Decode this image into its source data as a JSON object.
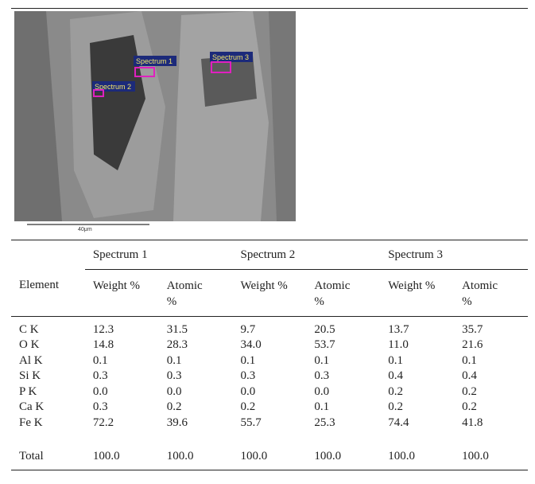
{
  "figure": {
    "labels": [
      "Spectrum 1",
      "Spectrum 2",
      "Spectrum 3"
    ],
    "scale_bar": "40μm"
  },
  "table": {
    "groups": [
      "Spectrum 1",
      "Spectrum 2",
      "Spectrum 3"
    ],
    "element_header": "Element",
    "subheaders": [
      "Weight %",
      "Atomic %",
      "Weight %",
      "Atomic %",
      "Weight %",
      "Atomic %"
    ],
    "rows": [
      [
        "C K",
        "12.3",
        "31.5",
        "9.7",
        "20.5",
        "13.7",
        "35.7"
      ],
      [
        "O K",
        "14.8",
        "28.3",
        "34.0",
        "53.7",
        "11.0",
        "21.6"
      ],
      [
        "Al K",
        "0.1",
        "0.1",
        "0.1",
        "0.1",
        "0.1",
        "0.1"
      ],
      [
        "Si K",
        "0.3",
        "0.3",
        "0.3",
        "0.3",
        "0.4",
        "0.4"
      ],
      [
        "P K",
        "0.0",
        "0.0",
        "0.0",
        "0.0",
        "0.2",
        "0.2"
      ],
      [
        "Ca K",
        "0.3",
        "0.2",
        "0.2",
        "0.1",
        "0.2",
        "0.2"
      ],
      [
        "Fe K",
        "72.2",
        "39.6",
        "55.7",
        "25.3",
        "74.4",
        "41.8"
      ]
    ],
    "total": [
      "Total",
      "100.0",
      "100.0",
      "100.0",
      "100.0",
      "100.0",
      "100.0"
    ]
  }
}
